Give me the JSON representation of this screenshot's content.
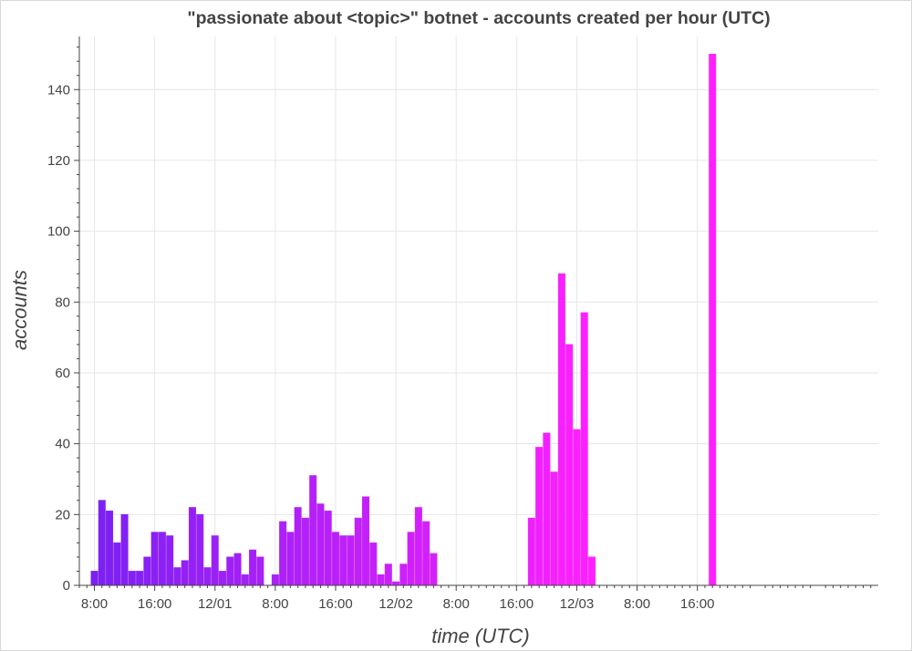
{
  "chart_data": {
    "type": "bar",
    "title": "\"passionate about <topic>\" botnet - accounts created per hour (UTC)",
    "xlabel": "time (UTC)",
    "ylabel": "accounts",
    "x_start": "11/30 00:00",
    "x_range_hours": [
      6,
      112
    ],
    "ylim": [
      0,
      155
    ],
    "x_ticks": [
      {
        "hour": 8,
        "label": "8:00"
      },
      {
        "hour": 16,
        "label": "16:00"
      },
      {
        "hour": 24,
        "label": "12/01"
      },
      {
        "hour": 32,
        "label": "8:00"
      },
      {
        "hour": 40,
        "label": "16:00"
      },
      {
        "hour": 48,
        "label": "12/02"
      },
      {
        "hour": 56,
        "label": "8:00"
      },
      {
        "hour": 64,
        "label": "16:00"
      },
      {
        "hour": 72,
        "label": "12/03"
      },
      {
        "hour": 80,
        "label": "8:00"
      },
      {
        "hour": 88,
        "label": "16:00"
      }
    ],
    "y_ticks": [
      0,
      20,
      40,
      60,
      80,
      100,
      120,
      140
    ],
    "grid": true,
    "color_scale": [
      "#7b20f3",
      "#ff20ff"
    ],
    "bars": [
      {
        "hour": 8,
        "value": 4
      },
      {
        "hour": 9,
        "value": 24
      },
      {
        "hour": 10,
        "value": 21
      },
      {
        "hour": 11,
        "value": 12
      },
      {
        "hour": 12,
        "value": 20
      },
      {
        "hour": 13,
        "value": 4
      },
      {
        "hour": 14,
        "value": 4
      },
      {
        "hour": 15,
        "value": 8
      },
      {
        "hour": 16,
        "value": 15
      },
      {
        "hour": 17,
        "value": 15
      },
      {
        "hour": 18,
        "value": 14
      },
      {
        "hour": 19,
        "value": 5
      },
      {
        "hour": 20,
        "value": 7
      },
      {
        "hour": 21,
        "value": 22
      },
      {
        "hour": 22,
        "value": 20
      },
      {
        "hour": 23,
        "value": 5
      },
      {
        "hour": 24,
        "value": 14
      },
      {
        "hour": 25,
        "value": 4
      },
      {
        "hour": 26,
        "value": 8
      },
      {
        "hour": 27,
        "value": 9
      },
      {
        "hour": 28,
        "value": 3
      },
      {
        "hour": 29,
        "value": 10
      },
      {
        "hour": 30,
        "value": 8
      },
      {
        "hour": 32,
        "value": 3
      },
      {
        "hour": 33,
        "value": 18
      },
      {
        "hour": 34,
        "value": 15
      },
      {
        "hour": 35,
        "value": 22
      },
      {
        "hour": 36,
        "value": 19
      },
      {
        "hour": 37,
        "value": 31
      },
      {
        "hour": 38,
        "value": 23
      },
      {
        "hour": 39,
        "value": 21
      },
      {
        "hour": 40,
        "value": 15
      },
      {
        "hour": 41,
        "value": 14
      },
      {
        "hour": 42,
        "value": 14
      },
      {
        "hour": 43,
        "value": 19
      },
      {
        "hour": 44,
        "value": 25
      },
      {
        "hour": 45,
        "value": 12
      },
      {
        "hour": 46,
        "value": 3
      },
      {
        "hour": 47,
        "value": 6
      },
      {
        "hour": 48,
        "value": 1
      },
      {
        "hour": 49,
        "value": 6
      },
      {
        "hour": 50,
        "value": 15
      },
      {
        "hour": 51,
        "value": 22
      },
      {
        "hour": 52,
        "value": 18
      },
      {
        "hour": 53,
        "value": 9
      },
      {
        "hour": 66,
        "value": 19
      },
      {
        "hour": 67,
        "value": 39
      },
      {
        "hour": 68,
        "value": 43
      },
      {
        "hour": 69,
        "value": 32
      },
      {
        "hour": 70,
        "value": 88
      },
      {
        "hour": 71,
        "value": 68
      },
      {
        "hour": 72,
        "value": 44
      },
      {
        "hour": 73,
        "value": 77
      },
      {
        "hour": 74,
        "value": 8
      },
      {
        "hour": 90,
        "value": 150
      }
    ]
  }
}
